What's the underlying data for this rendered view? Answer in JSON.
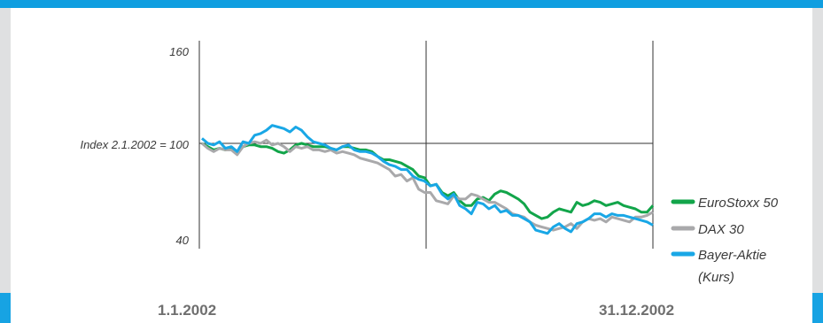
{
  "chart_data": {
    "type": "line",
    "y_tick_labels": [
      "160",
      "Index 2.1.2002 = 100",
      "40"
    ],
    "y_ticks": [
      160,
      100,
      40
    ],
    "ylim": [
      40,
      160
    ],
    "x_start_label": "1.1.2002",
    "x_end_label": "31.12.2002",
    "legend_position": "right",
    "grid": false,
    "reference_line": 100,
    "series": [
      {
        "name": "EuroStoxx 50",
        "legend_lines": [
          "EuroStoxx 50"
        ],
        "color": "#12a54a",
        "values": [
          100,
          98,
          96,
          97,
          96,
          97,
          94,
          98,
          99,
          99,
          98,
          98,
          97,
          95,
          94,
          96,
          99,
          100,
          99,
          98,
          98,
          98,
          97,
          96,
          98,
          98,
          97,
          96,
          96,
          95,
          92,
          90,
          90,
          89,
          88,
          86,
          84,
          80,
          79,
          74,
          75,
          70,
          68,
          70,
          65,
          62,
          62,
          66,
          67,
          65,
          69,
          71,
          70,
          68,
          66,
          63,
          58,
          56,
          54,
          55,
          58,
          60,
          59,
          58,
          64,
          62,
          63,
          65,
          64,
          62,
          63,
          64,
          62,
          61,
          60,
          58,
          58,
          62
        ]
      },
      {
        "name": "DAX 30",
        "legend_lines": [
          "DAX 30"
        ],
        "color": "#a9a9ab",
        "values": [
          100,
          97,
          95,
          97,
          96,
          96,
          93,
          98,
          100,
          101,
          100,
          102,
          99,
          100,
          98,
          95,
          98,
          97,
          98,
          96,
          96,
          95,
          96,
          94,
          95,
          94,
          93,
          91,
          90,
          89,
          88,
          86,
          84,
          80,
          81,
          77,
          79,
          72,
          70,
          70,
          65,
          64,
          63,
          68,
          66,
          66,
          69,
          68,
          66,
          64,
          64,
          62,
          60,
          57,
          56,
          55,
          52,
          50,
          49,
          48,
          47,
          48,
          49,
          51,
          48,
          52,
          54,
          53,
          54,
          52,
          55,
          54,
          53,
          52,
          55,
          55,
          56,
          58
        ]
      },
      {
        "name": "Bayer-Aktie (Kurs)",
        "legend_lines": [
          "Bayer-Aktie",
          "(Kurs)"
        ],
        "color": "#19a7e6",
        "values": [
          103,
          100,
          99,
          101,
          97,
          98,
          95,
          101,
          100,
          105,
          106,
          108,
          111,
          110,
          109,
          107,
          110,
          108,
          104,
          101,
          100,
          99,
          97,
          96,
          98,
          99,
          96,
          95,
          95,
          94,
          92,
          89,
          87,
          86,
          84,
          84,
          80,
          78,
          77,
          74,
          75,
          69,
          66,
          69,
          62,
          60,
          57,
          64,
          63,
          60,
          62,
          58,
          59,
          56,
          56,
          54,
          52,
          47,
          46,
          45,
          49,
          51,
          48,
          46,
          51,
          52,
          54,
          57,
          57,
          55,
          57,
          56,
          56,
          55,
          54,
          53,
          52,
          50
        ]
      }
    ]
  }
}
